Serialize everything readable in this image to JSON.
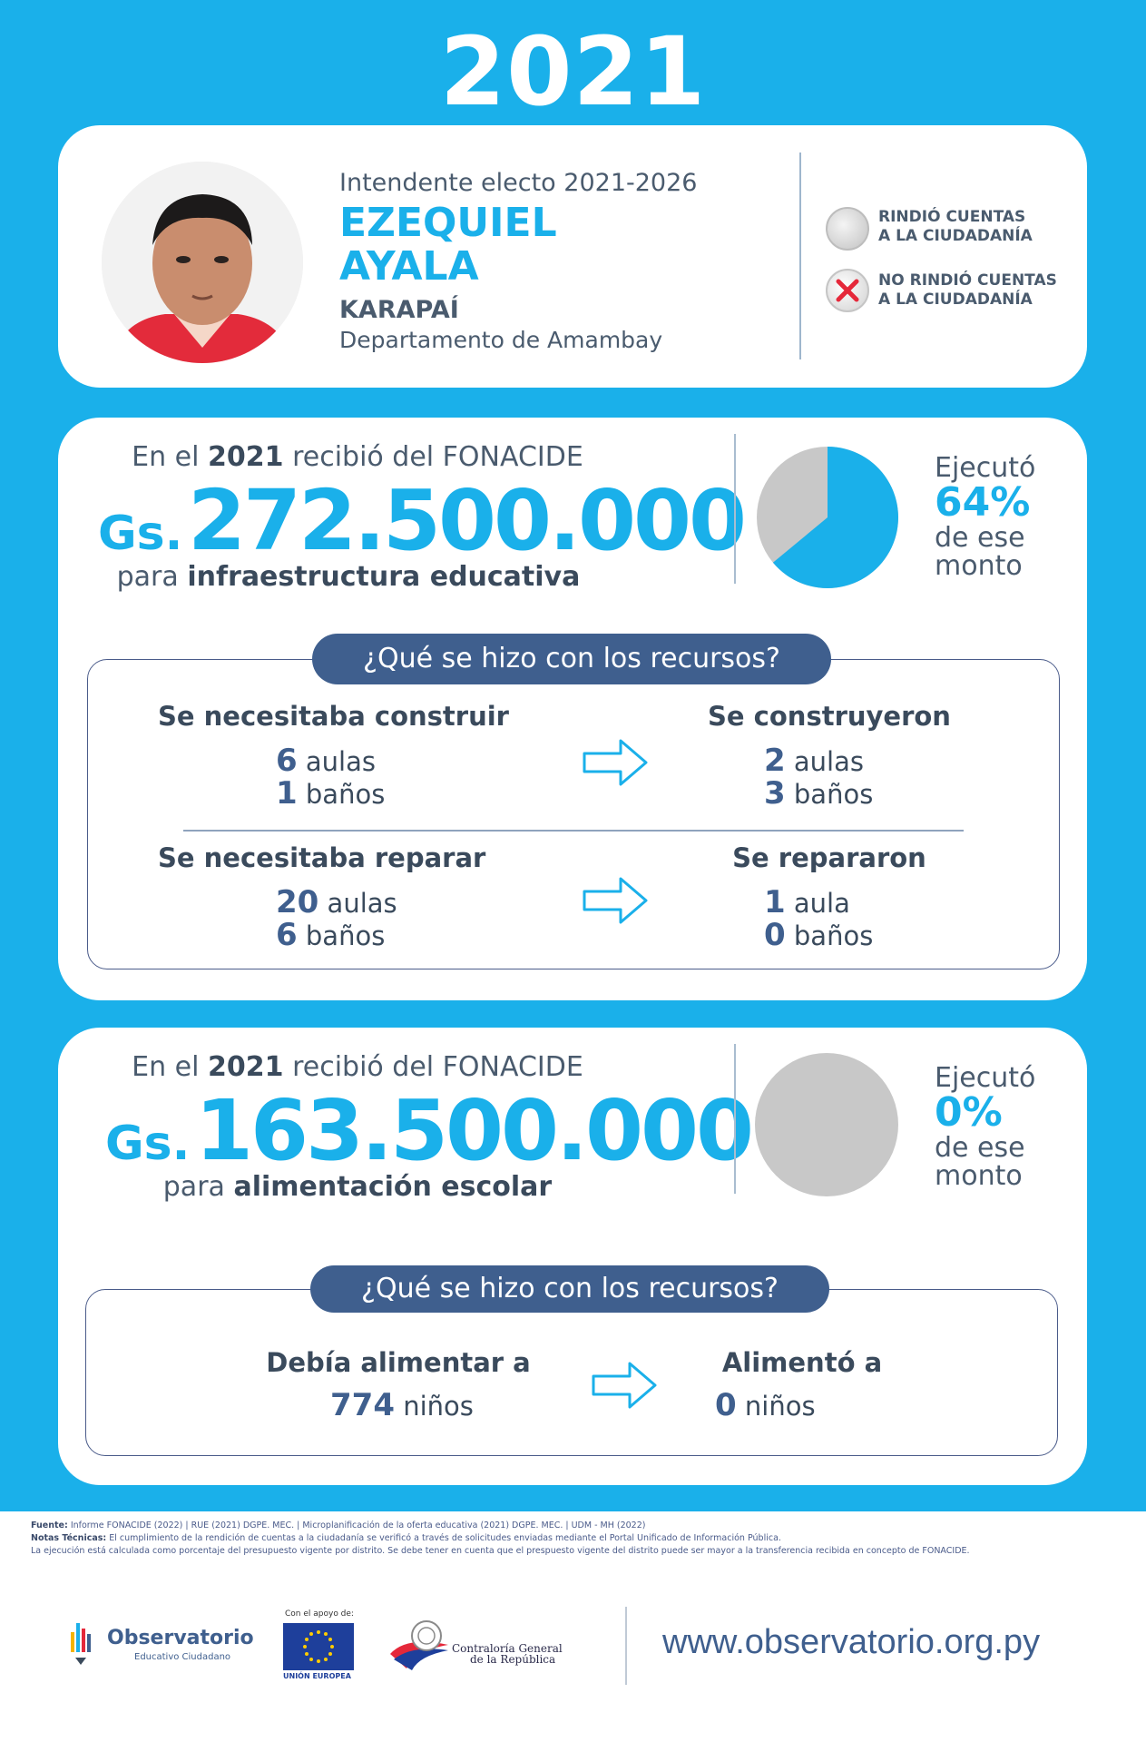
{
  "year": "2021",
  "profile": {
    "role": "Intendente electo 2021-2026",
    "first_name": "EZEQUIEL",
    "last_name": "AYALA",
    "city": "KARAPAÍ",
    "department": "Departamento de Amambay",
    "legend": [
      {
        "line1": "RINDIÓ CUENTAS",
        "line2": "A LA CIUDADANÍA"
      },
      {
        "line1": "NO RINDIÓ CUENTAS",
        "line2": "A LA CIUDADANÍA"
      }
    ],
    "accountability_status": "NO RINDIÓ CUENTAS"
  },
  "infra": {
    "intro_pre": "En el",
    "intro_year": "2021",
    "intro_post": "recibió del FONACIDE",
    "currency": "Gs.",
    "amount": "272.500.000",
    "purpose_pre": "para",
    "purpose": "infraestructura educativa",
    "ejecuto_label": "Ejecutó",
    "percent": "64%",
    "percent_value": 64,
    "de_ese": "de ese",
    "monto": "monto",
    "question": "¿Qué se hizo con los recursos?",
    "construir": {
      "needed_title": "Se necesitaba construir",
      "done_title": "Se construyeron",
      "needed": [
        {
          "n": "6",
          "unit": "aulas"
        },
        {
          "n": "1",
          "unit": "baños"
        }
      ],
      "done": [
        {
          "n": "2",
          "unit": "aulas"
        },
        {
          "n": "3",
          "unit": "baños"
        }
      ]
    },
    "reparar": {
      "needed_title": "Se necesitaba reparar",
      "done_title": "Se repararon",
      "needed": [
        {
          "n": "20",
          "unit": "aulas"
        },
        {
          "n": "6",
          "unit": "baños"
        }
      ],
      "done": [
        {
          "n": "1",
          "unit": "aula"
        },
        {
          "n": "0",
          "unit": "baños"
        }
      ]
    }
  },
  "food": {
    "intro_pre": "En el",
    "intro_year": "2021",
    "intro_post": "recibió del FONACIDE",
    "currency": "Gs.",
    "amount": "163.500.000",
    "purpose_pre": "para",
    "purpose": "alimentación escolar",
    "ejecuto_label": "Ejecutó",
    "percent": "0%",
    "percent_value": 0,
    "de_ese": "de ese",
    "monto": "monto",
    "question": "¿Qué se hizo con los recursos?",
    "needed_title": "Debía alimentar a",
    "done_title": "Alimentó a",
    "needed": {
      "n": "774",
      "unit": "niños"
    },
    "done": {
      "n": "0",
      "unit": "niños"
    }
  },
  "footer": {
    "fuente_label": "Fuente:",
    "fuente": "Informe FONACIDE (2022) | RUE (2021) DGPE. MEC. | Microplanificación de la oferta educativa (2021) DGPE. MEC. | UDM - MH (2022)",
    "notas_label": "Notas Técnicas:",
    "notas": "El cumplimiento de la rendición de cuentas a la ciudadanía se verificó a través de solicitudes enviadas mediante el Portal Unificado de Información Pública.",
    "notas2": "La ejecución está calculada como porcentaje del presupuesto vigente por distrito. Se debe tener en cuenta que el prespuesto vigente del distrito puede ser mayor a la transferencia recibida en concepto de FONACIDE.",
    "obs_title": "Observatorio",
    "obs_sub": "Educativo Ciudadano",
    "apoyo": "Con el apoyo de:",
    "ue": "UNIÓN EUROPEA",
    "contraloria1": "Contraloría General",
    "contraloria2": "de la República",
    "url": "www.observatorio.org.py"
  },
  "colors": {
    "blue": "#1ab0ea",
    "navy": "#3f5f8e",
    "text": "#4a5b6e",
    "gray": "#c8c8c8",
    "red": "#e5283a"
  }
}
